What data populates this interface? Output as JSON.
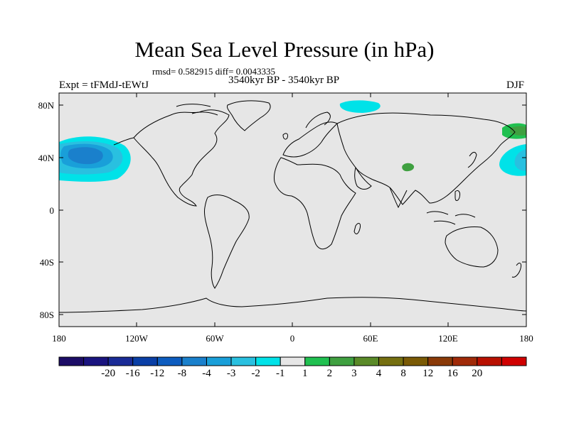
{
  "title": "Mean Sea Level Pressure (in hPa)",
  "stats_line": "rmsd= 0.582915 diff= 0.0043335",
  "period": "3540kyr BP - 3540kyr BP",
  "experiment": "Expt = tFMdJ-tEWtJ",
  "season": "DJF",
  "map": {
    "lat_ticks": [
      "80N",
      "40N",
      "0",
      "40S",
      "80S"
    ],
    "lon_ticks": [
      "180",
      "120W",
      "60W",
      "0",
      "60E",
      "120E",
      "180"
    ],
    "background_color": "#e6e6e6"
  },
  "colorbar": {
    "labels": [
      "-20",
      "-16",
      "-12",
      "-8",
      "-4",
      "-3",
      "-2",
      "-1",
      "1",
      "2",
      "3",
      "4",
      "8",
      "12",
      "16",
      "20"
    ],
    "colors": [
      "#1c0c66",
      "#1a147f",
      "#1a2b96",
      "#0a3fa6",
      "#0d5cbf",
      "#1a80cc",
      "#199fd9",
      "#29c0e0",
      "#00e2e8",
      "#e6e6e6",
      "#20c050",
      "#3fa040",
      "#5a8a28",
      "#756f10",
      "#7a5a05",
      "#8a3a08",
      "#a02a08",
      "#b81000",
      "#d00000"
    ]
  }
}
